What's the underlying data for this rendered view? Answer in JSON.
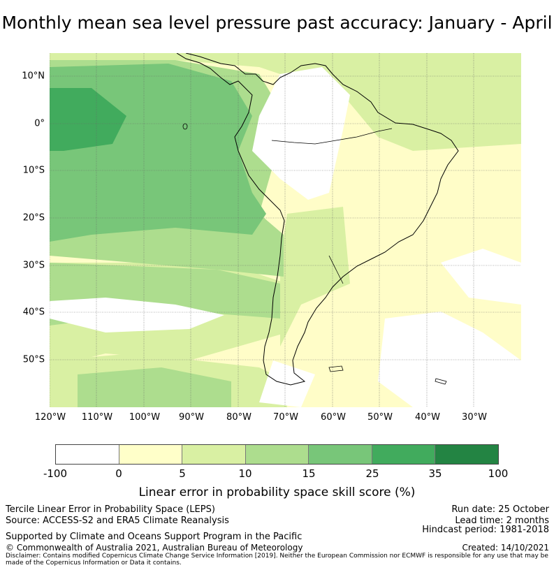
{
  "title": "Monthly mean sea level pressure past accuracy: January - April",
  "map": {
    "lat_labels": [
      "10°N",
      "0°",
      "10°S",
      "20°S",
      "30°S",
      "40°S",
      "50°S"
    ],
    "lon_labels": [
      "120°W",
      "110°W",
      "100°W",
      "90°W",
      "80°W",
      "70°W",
      "60°W",
      "50°W",
      "40°W",
      "30°W"
    ]
  },
  "colorbar": {
    "ticks": [
      "-100",
      "0",
      "5",
      "10",
      "15",
      "25",
      "35",
      "100"
    ],
    "colors": [
      "#ffffff",
      "#ffffc9",
      "#d9f0a3",
      "#addd8e",
      "#78c679",
      "#41ab5d",
      "#238443"
    ],
    "label": "Linear error in probability space skill score (%)"
  },
  "footer": {
    "line1": "Tercile Linear Error in Probability Space (LEPS)",
    "line2": "Source: ACCESS-S2 and ERA5 Climate Reanalysis",
    "line3": "Supported by Climate and Oceans Support Program in the Pacific",
    "line4": "© Commonwealth of Australia 2021, Australian Bureau of Meteorology",
    "disclaimer": "Disclaimer: Contains modified Copernicus Climate Change Service Information [2019]. Neither the European Commission nor ECMWF is responsible for any use that may be made of the Copernicus Information or Data it contains.",
    "run_date": "Run date: 25 October",
    "lead_time": "Lead time: 2 months",
    "hindcast": "Hindcast period: 1981-2018",
    "created": "Created: 14/10/2021"
  }
}
